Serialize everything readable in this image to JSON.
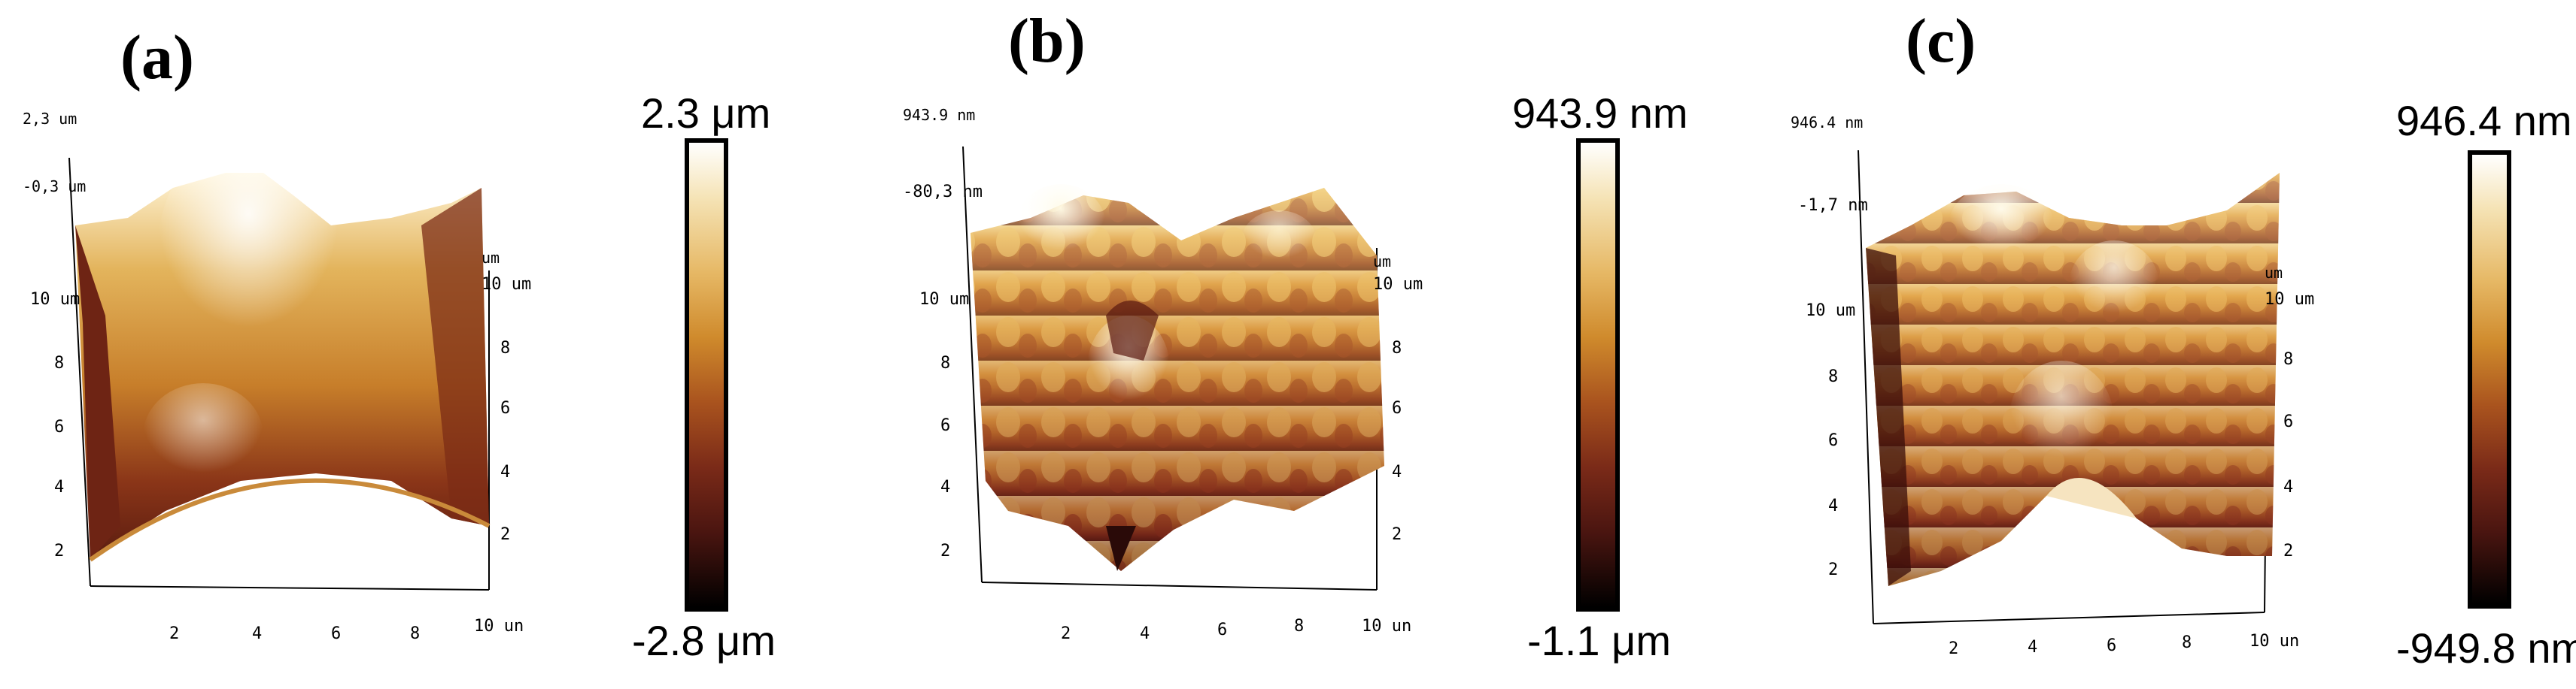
{
  "panels": [
    {
      "label": "(a)",
      "z_max": "2,3 um",
      "z_mid": "-0,3 um",
      "left_axis": [
        "10 um",
        "8",
        "6",
        "4",
        "2"
      ],
      "right_axis_unit": "um",
      "right_axis": [
        "10 um",
        "8",
        "6",
        "4",
        "2"
      ],
      "bottom_axis": [
        "2",
        "4",
        "6",
        "8",
        "10 un"
      ],
      "colorbar_top": "2.3 μm",
      "colorbar_bottom": "-2.8 μm"
    },
    {
      "label": "(b)",
      "z_max": "943.9 nm",
      "z_mid": "-80,3 nm",
      "left_axis": [
        "10 um",
        "8",
        "6",
        "4",
        "2"
      ],
      "right_axis_unit": "um",
      "right_axis": [
        "10 um",
        "8",
        "6",
        "4",
        "2"
      ],
      "bottom_axis": [
        "2",
        "4",
        "6",
        "8",
        "10 un"
      ],
      "colorbar_top": "943.9 nm",
      "colorbar_bottom": "-1.1 μm"
    },
    {
      "label": "(c)",
      "z_max": "946.4 nm",
      "z_mid": "-1,7 nm",
      "left_axis": [
        "10 um",
        "8",
        "6",
        "4",
        "2"
      ],
      "right_axis_unit": "um",
      "right_axis": [
        "10 um",
        "8",
        "6",
        "4",
        "2"
      ],
      "bottom_axis": [
        "2",
        "4",
        "6",
        "8",
        "10 un"
      ],
      "colorbar_top": "946.4 nm",
      "colorbar_bottom": "-949.8 nm"
    }
  ]
}
